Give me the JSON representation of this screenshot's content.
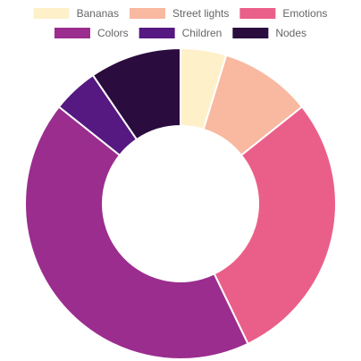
{
  "chart_data": {
    "type": "pie",
    "variant": "doughnut",
    "legend_position": "top",
    "grid": false,
    "labels": [
      "Bananas",
      "Street lights",
      "Emotions",
      "Colors",
      "Children",
      "Nodes"
    ],
    "values": [
      5,
      10,
      30,
      45,
      5,
      10
    ],
    "colors": [
      "#fef0c9",
      "#f8b9a0",
      "#ea5f89",
      "#9b2d8e",
      "#561881",
      "#2b0c3e"
    ],
    "border_color": "#ffffff"
  }
}
